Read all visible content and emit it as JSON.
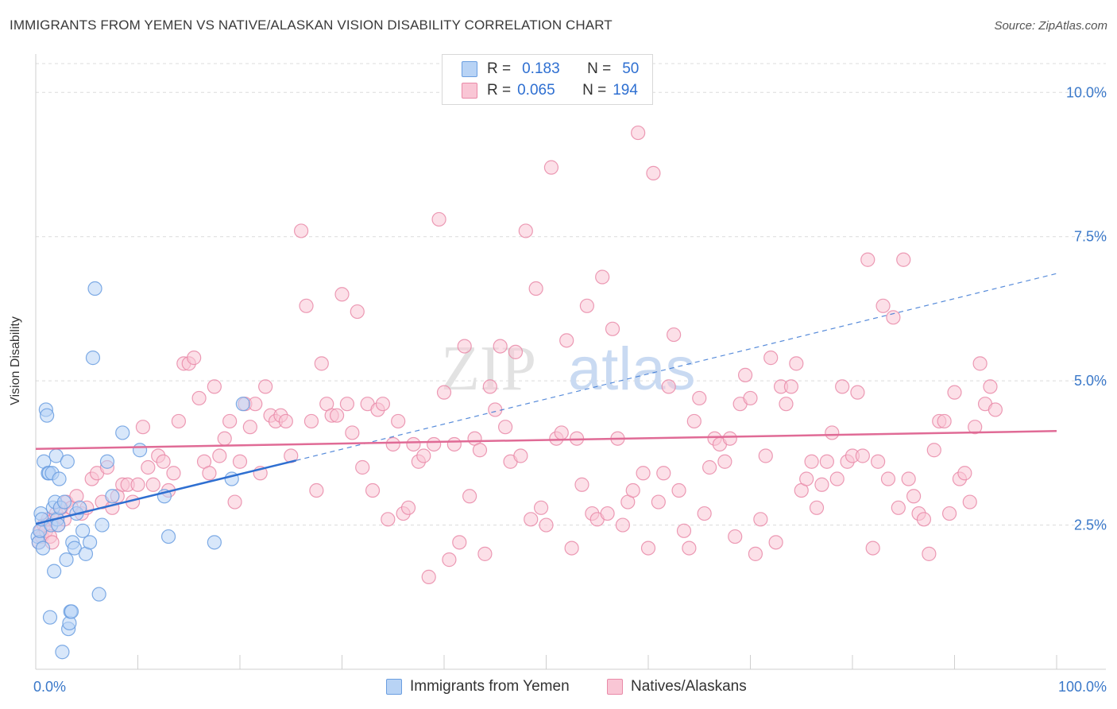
{
  "title": "IMMIGRANTS FROM YEMEN VS NATIVE/ALASKAN VISION DISABILITY CORRELATION CHART",
  "source": "Source: ZipAtlas.com",
  "watermark": {
    "part1": "ZIP",
    "part2": "atlas"
  },
  "legend": {
    "r_label": "R =",
    "n_label": "N =",
    "series": [
      {
        "name": "Immigrants from Yemen",
        "r": "0.183",
        "n": "50"
      },
      {
        "name": "Natives/Alaskans",
        "r": "0.065",
        "n": "194"
      }
    ]
  },
  "colors": {
    "blue_fill": "#b8d3f5",
    "blue_stroke": "#6a9ee0",
    "blue_line": "#2e6fd1",
    "pink_fill": "#f9c6d5",
    "pink_stroke": "#e98aa8",
    "pink_line": "#e06b96",
    "axis_text": "#3a78c9",
    "grid": "#dcdcdc"
  },
  "chart_data": {
    "type": "scatter",
    "title": "IMMIGRANTS FROM YEMEN VS NATIVE/ALASKAN VISION DISABILITY CORRELATION CHART",
    "xlabel": "",
    "ylabel": "Vision Disability",
    "xlim": [
      0,
      100
    ],
    "ylim": [
      0,
      10.5
    ],
    "x_tick_labels": [
      {
        "value": 0,
        "label": "0.0%"
      },
      {
        "value": 100,
        "label": "100.0%"
      }
    ],
    "y_tick_labels": [
      {
        "value": 2.5,
        "label": "2.5%"
      },
      {
        "value": 5.0,
        "label": "5.0%"
      },
      {
        "value": 7.5,
        "label": "7.5%"
      },
      {
        "value": 10.0,
        "label": "10.0%"
      }
    ],
    "x_minor_ticks": [
      0,
      10,
      20,
      30,
      40,
      50,
      60,
      70,
      80,
      90,
      100
    ],
    "series": [
      {
        "name": "Immigrants from Yemen",
        "color": "blue",
        "trend": {
          "x0": 0,
          "y0": 2.52,
          "x1": 25.5,
          "y1": 3.62,
          "dash_to_x": 100,
          "dash_to_y": 6.86
        },
        "points": [
          [
            0.2,
            2.3
          ],
          [
            0.3,
            2.2
          ],
          [
            0.4,
            2.4
          ],
          [
            0.5,
            2.7
          ],
          [
            0.6,
            2.6
          ],
          [
            0.7,
            2.1
          ],
          [
            0.8,
            3.6
          ],
          [
            1.0,
            4.5
          ],
          [
            1.1,
            4.4
          ],
          [
            1.2,
            3.4
          ],
          [
            1.3,
            3.4
          ],
          [
            1.4,
            0.9
          ],
          [
            1.5,
            2.5
          ],
          [
            1.6,
            3.4
          ],
          [
            1.7,
            2.8
          ],
          [
            1.8,
            1.7
          ],
          [
            1.9,
            2.9
          ],
          [
            2.0,
            3.7
          ],
          [
            2.1,
            2.6
          ],
          [
            2.2,
            2.5
          ],
          [
            2.3,
            3.3
          ],
          [
            2.4,
            2.8
          ],
          [
            2.6,
            0.3
          ],
          [
            2.8,
            2.9
          ],
          [
            3.0,
            1.9
          ],
          [
            3.1,
            3.6
          ],
          [
            3.2,
            0.7
          ],
          [
            3.3,
            0.8
          ],
          [
            3.4,
            1.0
          ],
          [
            3.5,
            1.0
          ],
          [
            3.6,
            2.2
          ],
          [
            3.8,
            2.1
          ],
          [
            4.0,
            2.7
          ],
          [
            4.3,
            2.8
          ],
          [
            4.6,
            2.4
          ],
          [
            4.9,
            2.0
          ],
          [
            5.3,
            2.2
          ],
          [
            5.6,
            5.4
          ],
          [
            5.8,
            6.6
          ],
          [
            6.2,
            1.3
          ],
          [
            6.5,
            2.5
          ],
          [
            7.0,
            3.6
          ],
          [
            7.5,
            3.0
          ],
          [
            8.5,
            4.1
          ],
          [
            10.2,
            3.8
          ],
          [
            12.6,
            3.0
          ],
          [
            13.0,
            2.3
          ],
          [
            17.5,
            2.2
          ],
          [
            19.2,
            3.3
          ],
          [
            20.3,
            4.6
          ]
        ]
      },
      {
        "name": "Natives/Alaskans",
        "color": "pink",
        "trend": {
          "x0": 0,
          "y0": 3.82,
          "x1": 100,
          "y1": 4.13
        },
        "points": [
          [
            0.3,
            2.2
          ],
          [
            0.5,
            2.4
          ],
          [
            0.6,
            2.3
          ],
          [
            0.8,
            2.5
          ],
          [
            1.0,
            2.4
          ],
          [
            1.2,
            2.6
          ],
          [
            1.4,
            2.3
          ],
          [
            1.6,
            2.2
          ],
          [
            1.8,
            2.6
          ],
          [
            2.0,
            2.7
          ],
          [
            2.2,
            2.5
          ],
          [
            2.5,
            2.8
          ],
          [
            2.8,
            2.6
          ],
          [
            3.0,
            2.9
          ],
          [
            3.5,
            2.8
          ],
          [
            4.0,
            3.0
          ],
          [
            4.5,
            2.7
          ],
          [
            5.0,
            2.8
          ],
          [
            5.5,
            3.3
          ],
          [
            6.0,
            3.4
          ],
          [
            6.5,
            2.9
          ],
          [
            7.0,
            3.5
          ],
          [
            7.5,
            2.8
          ],
          [
            8.0,
            3.0
          ],
          [
            8.5,
            3.2
          ],
          [
            9.0,
            3.2
          ],
          [
            9.5,
            2.9
          ],
          [
            10.0,
            3.2
          ],
          [
            10.5,
            4.2
          ],
          [
            11.0,
            3.5
          ],
          [
            11.5,
            3.2
          ],
          [
            12.0,
            3.7
          ],
          [
            12.5,
            3.6
          ],
          [
            13.0,
            3.1
          ],
          [
            13.5,
            3.4
          ],
          [
            14.0,
            4.3
          ],
          [
            14.5,
            5.3
          ],
          [
            15.0,
            5.3
          ],
          [
            15.5,
            5.4
          ],
          [
            16.0,
            4.7
          ],
          [
            16.5,
            3.6
          ],
          [
            17.0,
            3.4
          ],
          [
            17.5,
            4.9
          ],
          [
            18.0,
            3.7
          ],
          [
            18.5,
            4.0
          ],
          [
            19.0,
            4.3
          ],
          [
            19.5,
            2.9
          ],
          [
            20.0,
            3.6
          ],
          [
            20.5,
            4.6
          ],
          [
            21.0,
            4.2
          ],
          [
            21.5,
            4.6
          ],
          [
            22.0,
            3.4
          ],
          [
            22.5,
            4.9
          ],
          [
            23.0,
            4.4
          ],
          [
            23.5,
            4.3
          ],
          [
            24.0,
            4.4
          ],
          [
            24.5,
            4.3
          ],
          [
            25.0,
            3.7
          ],
          [
            26.0,
            7.6
          ],
          [
            26.5,
            6.3
          ],
          [
            27.0,
            4.3
          ],
          [
            27.5,
            3.1
          ],
          [
            28.0,
            5.3
          ],
          [
            28.5,
            4.6
          ],
          [
            29.0,
            4.4
          ],
          [
            29.5,
            4.4
          ],
          [
            30.0,
            6.5
          ],
          [
            30.5,
            4.6
          ],
          [
            31.0,
            4.1
          ],
          [
            31.5,
            6.2
          ],
          [
            32.0,
            3.5
          ],
          [
            32.5,
            4.6
          ],
          [
            33.0,
            3.1
          ],
          [
            33.5,
            4.5
          ],
          [
            34.0,
            4.6
          ],
          [
            34.5,
            2.6
          ],
          [
            35.0,
            3.9
          ],
          [
            35.5,
            4.3
          ],
          [
            36.0,
            2.7
          ],
          [
            36.5,
            2.8
          ],
          [
            37.0,
            3.9
          ],
          [
            37.5,
            3.6
          ],
          [
            38.0,
            3.7
          ],
          [
            38.5,
            1.6
          ],
          [
            39.0,
            3.9
          ],
          [
            39.5,
            7.8
          ],
          [
            40.0,
            4.8
          ],
          [
            40.5,
            1.9
          ],
          [
            41.0,
            3.9
          ],
          [
            41.5,
            2.2
          ],
          [
            42.0,
            5.6
          ],
          [
            42.5,
            3.0
          ],
          [
            43.0,
            4.0
          ],
          [
            43.5,
            3.8
          ],
          [
            44.0,
            2.0
          ],
          [
            44.5,
            4.9
          ],
          [
            45.0,
            4.5
          ],
          [
            45.5,
            5.6
          ],
          [
            46.0,
            4.2
          ],
          [
            46.5,
            3.6
          ],
          [
            47.0,
            5.5
          ],
          [
            47.5,
            3.7
          ],
          [
            48.0,
            7.6
          ],
          [
            48.5,
            2.6
          ],
          [
            49.0,
            6.6
          ],
          [
            49.5,
            2.8
          ],
          [
            50.0,
            2.5
          ],
          [
            50.5,
            8.7
          ],
          [
            51.0,
            4.0
          ],
          [
            51.5,
            4.1
          ],
          [
            52.0,
            5.7
          ],
          [
            52.5,
            2.1
          ],
          [
            53.0,
            4.0
          ],
          [
            53.5,
            3.2
          ],
          [
            54.0,
            6.3
          ],
          [
            54.5,
            2.7
          ],
          [
            55.0,
            2.6
          ],
          [
            55.5,
            6.8
          ],
          [
            56.0,
            2.7
          ],
          [
            56.5,
            5.9
          ],
          [
            57.0,
            4.0
          ],
          [
            57.5,
            2.5
          ],
          [
            58.0,
            2.9
          ],
          [
            58.5,
            3.1
          ],
          [
            59.0,
            9.3
          ],
          [
            59.5,
            3.4
          ],
          [
            60.0,
            2.1
          ],
          [
            60.5,
            8.6
          ],
          [
            61.0,
            2.9
          ],
          [
            61.5,
            3.4
          ],
          [
            62.0,
            4.9
          ],
          [
            62.5,
            5.8
          ],
          [
            63.0,
            3.1
          ],
          [
            63.5,
            2.4
          ],
          [
            64.0,
            2.1
          ],
          [
            64.5,
            4.3
          ],
          [
            65.0,
            4.7
          ],
          [
            65.5,
            2.7
          ],
          [
            66.0,
            3.5
          ],
          [
            66.5,
            4.0
          ],
          [
            67.0,
            3.9
          ],
          [
            67.5,
            3.6
          ],
          [
            68.0,
            4.0
          ],
          [
            68.5,
            2.3
          ],
          [
            69.0,
            4.6
          ],
          [
            69.5,
            5.1
          ],
          [
            70.0,
            4.7
          ],
          [
            70.5,
            2.0
          ],
          [
            71.0,
            2.6
          ],
          [
            71.5,
            3.7
          ],
          [
            72.0,
            5.4
          ],
          [
            72.5,
            2.2
          ],
          [
            73.0,
            4.9
          ],
          [
            73.5,
            4.6
          ],
          [
            74.0,
            4.9
          ],
          [
            74.5,
            5.3
          ],
          [
            75.0,
            3.1
          ],
          [
            75.5,
            3.3
          ],
          [
            76.0,
            3.6
          ],
          [
            76.5,
            2.8
          ],
          [
            77.0,
            3.2
          ],
          [
            77.5,
            3.6
          ],
          [
            78.0,
            4.1
          ],
          [
            78.5,
            3.3
          ],
          [
            79.0,
            4.9
          ],
          [
            79.5,
            3.6
          ],
          [
            80.0,
            3.7
          ],
          [
            80.5,
            4.8
          ],
          [
            81.0,
            3.7
          ],
          [
            81.5,
            7.1
          ],
          [
            82.0,
            2.1
          ],
          [
            82.5,
            3.6
          ],
          [
            83.0,
            6.3
          ],
          [
            83.5,
            3.3
          ],
          [
            84.0,
            6.1
          ],
          [
            84.5,
            2.8
          ],
          [
            85.0,
            7.1
          ],
          [
            85.5,
            3.3
          ],
          [
            86.0,
            3.0
          ],
          [
            86.5,
            2.7
          ],
          [
            87.0,
            2.6
          ],
          [
            87.5,
            2.0
          ],
          [
            88.0,
            3.8
          ],
          [
            88.5,
            4.3
          ],
          [
            89.0,
            4.3
          ],
          [
            89.5,
            2.7
          ],
          [
            90.0,
            4.8
          ],
          [
            90.5,
            3.3
          ],
          [
            91.0,
            3.4
          ],
          [
            91.5,
            2.9
          ],
          [
            92.0,
            4.2
          ],
          [
            92.5,
            5.3
          ],
          [
            93.0,
            4.6
          ],
          [
            93.5,
            4.9
          ],
          [
            94.0,
            4.5
          ]
        ]
      }
    ]
  }
}
